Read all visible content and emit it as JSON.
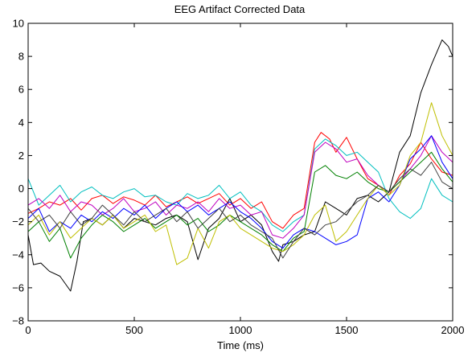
{
  "chart_data": {
    "type": "line",
    "title": "EEG Artifact Corrected Data",
    "xlabel": "Time (ms)",
    "ylabel": "",
    "xlim": [
      0,
      2000
    ],
    "ylim": [
      -8,
      10
    ],
    "xticks": [
      0,
      500,
      1000,
      1500,
      2000
    ],
    "yticks": [
      -8,
      -6,
      -4,
      -2,
      0,
      2,
      4,
      6,
      8,
      10
    ],
    "xtick_labels": [
      "0",
      "500",
      "1000",
      "1500",
      "2000"
    ],
    "ytick_labels": [
      "−8",
      "−6",
      "−4",
      "−2",
      "0",
      "2",
      "4",
      "6",
      "8",
      "10"
    ],
    "grid": false,
    "legend": false,
    "series": [
      {
        "color": "#000000",
        "x": [
          0,
          25,
          60,
          100,
          150,
          200,
          230,
          260,
          300,
          350,
          400,
          450,
          500,
          550,
          600,
          650,
          700,
          750,
          800,
          850,
          900,
          950,
          1000,
          1050,
          1100,
          1150,
          1180,
          1200,
          1250,
          1300,
          1350,
          1400,
          1450,
          1500,
          1550,
          1600,
          1650,
          1700,
          1750,
          1800,
          1850,
          1900,
          1950,
          1980,
          2000
        ],
        "y": [
          -2.8,
          -4.6,
          -4.5,
          -5.0,
          -5.3,
          -6.2,
          -4.4,
          -2.0,
          -1.8,
          -2.2,
          -1.6,
          -2.4,
          -1.8,
          -2.0,
          -2.2,
          -1.8,
          -1.6,
          -2.0,
          -4.3,
          -2.4,
          -1.8,
          -0.6,
          -2.0,
          -1.6,
          -2.2,
          -3.8,
          -4.4,
          -3.4,
          -3.2,
          -2.8,
          -2.6,
          -0.8,
          -1.2,
          -1.6,
          -0.6,
          -0.4,
          -0.8,
          -0.2,
          2.2,
          3.2,
          5.8,
          7.5,
          9.0,
          8.6,
          8.0
        ]
      },
      {
        "color": "#ff0000",
        "x": [
          0,
          50,
          100,
          150,
          200,
          250,
          300,
          350,
          400,
          450,
          500,
          550,
          600,
          650,
          700,
          750,
          800,
          850,
          900,
          950,
          1000,
          1050,
          1100,
          1150,
          1200,
          1250,
          1300,
          1350,
          1380,
          1420,
          1450,
          1500,
          1550,
          1600,
          1650,
          1700,
          1750,
          1800,
          1850,
          1900,
          1950,
          2000
        ],
        "y": [
          -1.5,
          -1.2,
          -0.8,
          -1.0,
          -0.6,
          -1.3,
          -0.6,
          -0.4,
          -0.9,
          -0.5,
          -0.7,
          -1.0,
          -0.4,
          -1.1,
          -0.8,
          -0.5,
          -0.9,
          -0.6,
          -0.3,
          -1.0,
          -0.6,
          -1.2,
          -0.8,
          -2.0,
          -2.4,
          -1.6,
          -1.2,
          2.8,
          3.4,
          3.0,
          2.2,
          3.1,
          1.8,
          0.6,
          0.2,
          -0.4,
          0.8,
          1.5,
          2.8,
          1.8,
          1.0,
          0.8
        ]
      },
      {
        "color": "#00bfbf",
        "x": [
          0,
          50,
          100,
          150,
          200,
          250,
          300,
          350,
          400,
          450,
          500,
          550,
          600,
          650,
          700,
          750,
          800,
          850,
          900,
          950,
          1000,
          1050,
          1100,
          1150,
          1200,
          1250,
          1300,
          1350,
          1400,
          1450,
          1500,
          1550,
          1600,
          1650,
          1700,
          1750,
          1800,
          1850,
          1900,
          1950,
          2000
        ],
        "y": [
          0.6,
          -1.0,
          -0.4,
          0.2,
          -0.8,
          -0.2,
          0.1,
          -0.4,
          -0.6,
          -0.2,
          0.0,
          -0.5,
          -0.4,
          -0.8,
          -1.0,
          -0.3,
          -0.6,
          -0.4,
          0.2,
          -0.6,
          -0.2,
          -1.0,
          -1.4,
          -2.2,
          -2.6,
          -2.0,
          -1.6,
          2.4,
          3.0,
          2.6,
          2.0,
          2.2,
          1.6,
          1.0,
          -0.6,
          -1.4,
          -1.8,
          -1.2,
          0.6,
          -0.4,
          -0.8
        ]
      },
      {
        "color": "#bf00bf",
        "x": [
          0,
          50,
          100,
          150,
          200,
          250,
          300,
          350,
          400,
          450,
          500,
          550,
          600,
          650,
          700,
          750,
          800,
          850,
          900,
          950,
          1000,
          1050,
          1100,
          1150,
          1200,
          1250,
          1300,
          1350,
          1400,
          1450,
          1500,
          1550,
          1600,
          1650,
          1700,
          1750,
          1800,
          1850,
          1900,
          1950,
          2000
        ],
        "y": [
          -1.0,
          -0.6,
          -1.2,
          -0.4,
          -1.4,
          -0.8,
          -1.0,
          -1.6,
          -1.2,
          -0.6,
          -1.4,
          -1.2,
          -0.8,
          -1.6,
          -1.0,
          -1.2,
          -0.8,
          -1.4,
          -0.6,
          -1.2,
          -1.0,
          -1.6,
          -1.4,
          -2.8,
          -3.0,
          -2.4,
          -1.6,
          2.2,
          2.8,
          2.4,
          1.6,
          1.8,
          0.8,
          0.2,
          -0.2,
          0.4,
          1.2,
          2.0,
          3.2,
          2.2,
          1.6
        ]
      },
      {
        "color": "#0000ff",
        "x": [
          0,
          50,
          100,
          150,
          200,
          250,
          300,
          350,
          400,
          450,
          500,
          550,
          600,
          650,
          700,
          750,
          800,
          850,
          900,
          950,
          1000,
          1050,
          1100,
          1150,
          1200,
          1250,
          1300,
          1350,
          1400,
          1450,
          1500,
          1550,
          1600,
          1650,
          1700,
          1750,
          1800,
          1850,
          1900,
          1950,
          2000
        ],
        "y": [
          -1.8,
          -1.2,
          -2.6,
          -2.0,
          -2.4,
          -1.6,
          -2.0,
          -1.4,
          -1.8,
          -1.2,
          -1.6,
          -1.0,
          -1.8,
          -1.2,
          -0.8,
          -1.4,
          -1.0,
          -1.6,
          -1.2,
          -0.8,
          -1.4,
          -1.8,
          -2.4,
          -3.2,
          -3.6,
          -2.8,
          -2.4,
          -2.6,
          -3.0,
          -3.4,
          -3.2,
          -2.8,
          -0.6,
          -0.2,
          -0.8,
          0.2,
          1.8,
          2.4,
          3.2,
          1.6,
          0.6
        ]
      },
      {
        "color": "#008000",
        "x": [
          0,
          50,
          100,
          150,
          200,
          250,
          300,
          350,
          400,
          450,
          500,
          550,
          600,
          650,
          700,
          750,
          800,
          850,
          900,
          950,
          1000,
          1050,
          1100,
          1150,
          1200,
          1250,
          1300,
          1350,
          1400,
          1450,
          1500,
          1550,
          1600,
          1650,
          1700,
          1750,
          1800,
          1850,
          1900,
          1950,
          2000
        ],
        "y": [
          -2.6,
          -2.0,
          -3.2,
          -2.4,
          -4.2,
          -3.0,
          -2.2,
          -1.6,
          -2.0,
          -2.6,
          -2.2,
          -1.8,
          -2.4,
          -2.0,
          -1.6,
          -2.2,
          -1.8,
          -2.6,
          -2.2,
          -1.6,
          -2.0,
          -2.4,
          -2.8,
          -3.4,
          -3.8,
          -3.0,
          -2.6,
          1.0,
          1.4,
          0.8,
          0.6,
          1.0,
          0.4,
          0.0,
          -0.2,
          0.4,
          1.0,
          1.6,
          2.2,
          1.2,
          0.4
        ]
      },
      {
        "color": "#bfbf00",
        "x": [
          0,
          50,
          100,
          150,
          200,
          250,
          300,
          350,
          400,
          450,
          500,
          550,
          600,
          650,
          700,
          750,
          800,
          850,
          900,
          950,
          1000,
          1050,
          1100,
          1150,
          1200,
          1250,
          1300,
          1350,
          1400,
          1450,
          1500,
          1550,
          1600,
          1650,
          1700,
          1750,
          1800,
          1850,
          1900,
          1950,
          2000
        ],
        "y": [
          -2.2,
          -1.6,
          -2.8,
          -2.0,
          -3.0,
          -2.4,
          -1.8,
          -2.2,
          -1.6,
          -2.4,
          -2.0,
          -1.6,
          -2.6,
          -2.2,
          -4.6,
          -4.2,
          -2.4,
          -3.6,
          -2.0,
          -1.6,
          -2.4,
          -2.8,
          -3.2,
          -3.6,
          -3.8,
          -3.4,
          -2.8,
          -1.6,
          -1.0,
          -3.2,
          -2.6,
          -1.6,
          -0.6,
          0.2,
          -0.4,
          0.2,
          2.0,
          2.8,
          5.2,
          3.2,
          2.0
        ]
      },
      {
        "color": "#404040",
        "x": [
          0,
          50,
          100,
          150,
          200,
          250,
          300,
          350,
          400,
          450,
          500,
          550,
          600,
          650,
          700,
          750,
          800,
          850,
          900,
          950,
          1000,
          1050,
          1100,
          1150,
          1200,
          1250,
          1300,
          1350,
          1400,
          1450,
          1500,
          1550,
          1600,
          1650,
          1700,
          1750,
          1800,
          1850,
          1900,
          1950,
          2000
        ],
        "y": [
          -1.2,
          -2.0,
          -1.6,
          -2.4,
          -1.4,
          -2.2,
          -1.8,
          -1.0,
          -1.6,
          -2.2,
          -1.4,
          -2.0,
          -1.6,
          -1.2,
          -2.0,
          -1.4,
          -2.4,
          -1.8,
          -1.2,
          -2.0,
          -1.6,
          -2.2,
          -2.6,
          -3.0,
          -4.2,
          -3.2,
          -2.4,
          -2.8,
          -2.2,
          -2.0,
          -1.4,
          -0.8,
          -0.4,
          0.2,
          -0.2,
          0.6,
          1.2,
          0.8,
          1.6,
          0.4,
          0.0
        ]
      }
    ]
  }
}
